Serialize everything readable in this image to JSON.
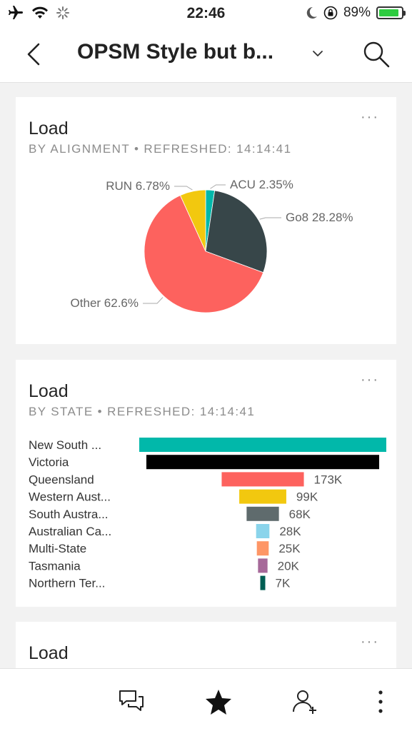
{
  "status_bar": {
    "time": "22:46",
    "battery": "89%",
    "battery_level": 0.89,
    "icons": [
      "airplane-icon",
      "wifi-icon",
      "loading-spinner-icon",
      "moon-icon",
      "orientation-lock-icon",
      "battery-icon"
    ]
  },
  "header": {
    "title": "OPSM Style but b...",
    "icons": {
      "back": "chevron-left-icon",
      "dropdown": "chevron-down-icon",
      "search": "search-icon"
    }
  },
  "cards": [
    {
      "title": "Load",
      "subtitle": "BY ALIGNMENT   •   REFRESHED: 14:14:41",
      "more": "···"
    },
    {
      "title": "Load",
      "subtitle": "BY STATE   •   REFRESHED: 14:14:41",
      "more": "···"
    },
    {
      "title": "Load",
      "more": "···"
    }
  ],
  "chart_data": [
    {
      "type": "pie",
      "slices": [
        {
          "name": "ACU",
          "label": "ACU 2.35%",
          "value": 2.35,
          "color": "#01b8aa"
        },
        {
          "name": "Go8",
          "label": "Go8 28.28%",
          "value": 28.28,
          "color": "#374649"
        },
        {
          "name": "Other",
          "label": "Other 62.6%",
          "value": 62.6,
          "color": "#fd625e"
        },
        {
          "name": "RUN",
          "label": "RUN 6.78%",
          "value": 6.78,
          "color": "#f2c80f"
        }
      ]
    },
    {
      "type": "bar",
      "orientation": "funnel",
      "categories": [
        "New South ...",
        "Victoria",
        "Queensland",
        "Western Aust...",
        "South Austra...",
        "Australian Ca...",
        "Multi-State",
        "Tasmania",
        "Northern Ter..."
      ],
      "values": [
        520,
        490,
        173,
        99,
        68,
        28,
        25,
        20,
        7
      ],
      "value_labels": [
        "",
        "",
        "173K",
        "99K",
        "68K",
        "28K",
        "25K",
        "20K",
        "7K"
      ],
      "colors": [
        "#01b8aa",
        "#000000",
        "#fd625e",
        "#f2c80f",
        "#5f6b6d",
        "#8ad4eb",
        "#fe9666",
        "#a66999",
        "#005e53"
      ]
    }
  ],
  "bottom_nav": {
    "icons": [
      "comments-icon",
      "favorite-star-icon",
      "add-user-icon",
      "more-vertical-icon"
    ]
  }
}
